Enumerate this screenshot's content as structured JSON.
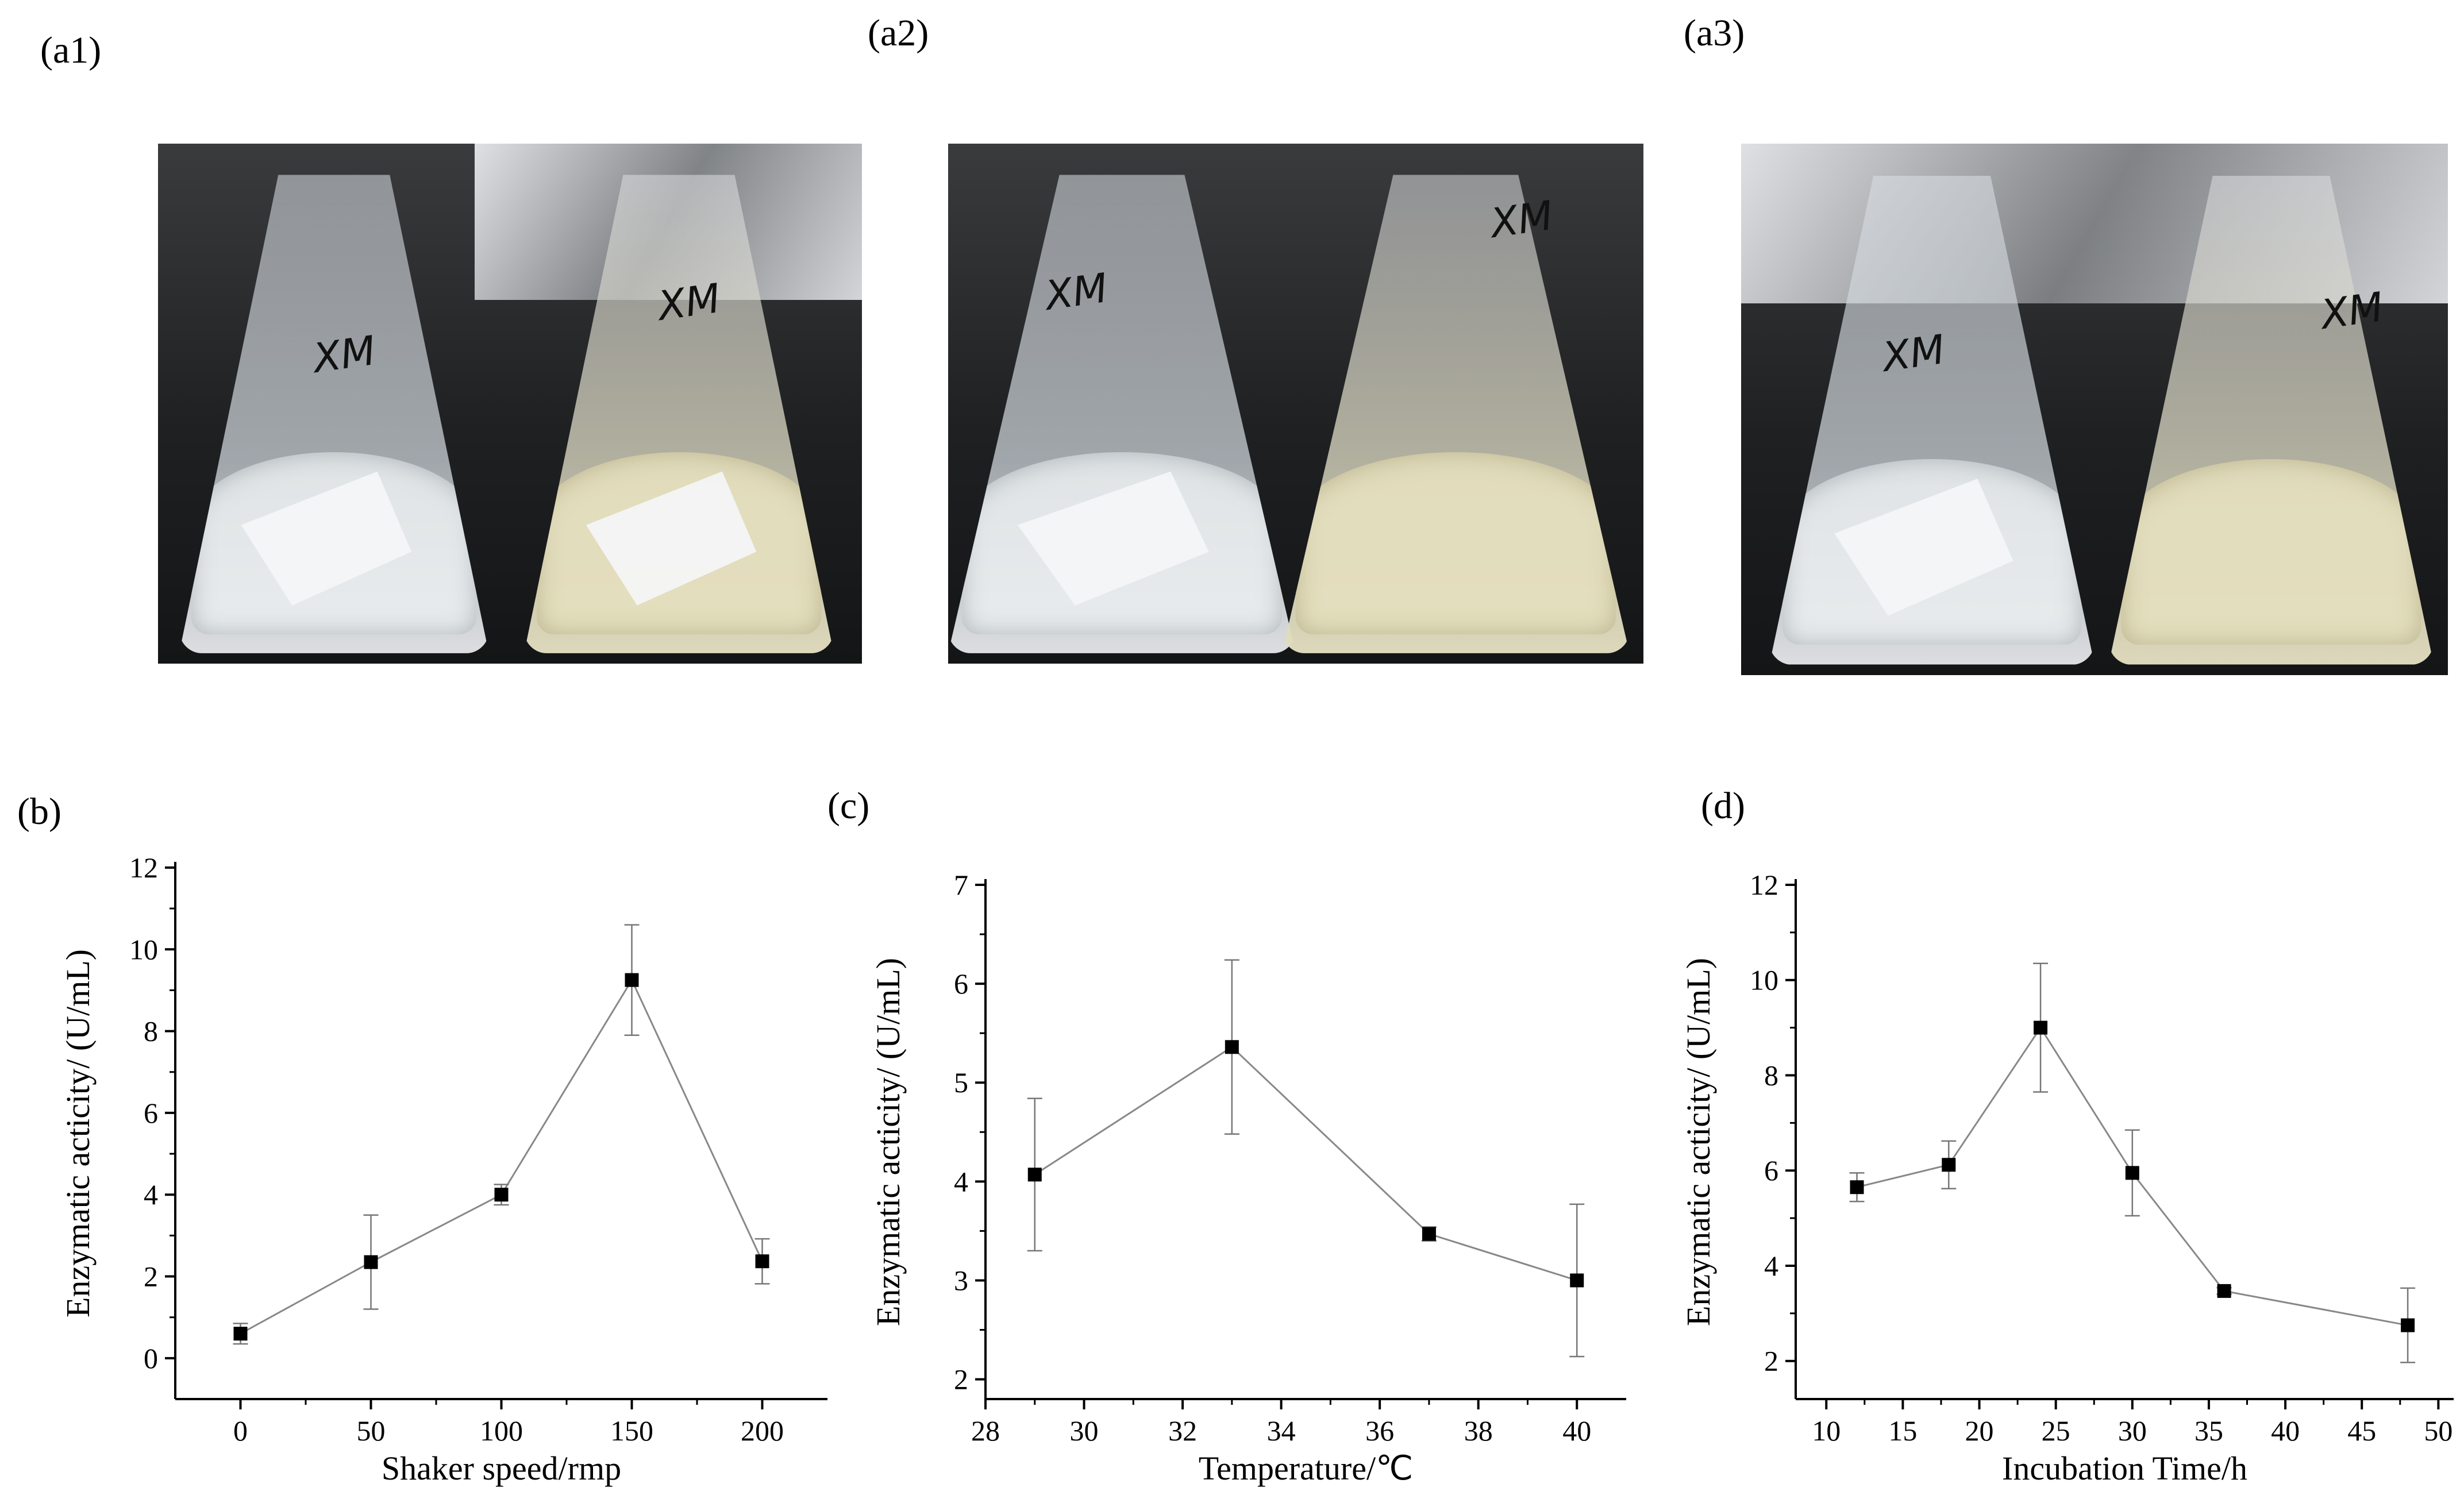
{
  "panels": {
    "a1": "(a1)",
    "a2": "(a2)",
    "a3": "(a3)",
    "b": "(b)",
    "c": "(c)",
    "d": "(d)"
  },
  "photos": {
    "flask_mark": "XM",
    "glass_color": "#dfe3e7",
    "turbid_color": "#e2dcbc",
    "background_color": "#1f2022"
  },
  "chart_data": [
    {
      "type": "scatter",
      "panel": "(b)",
      "title": "",
      "xlabel": "Shaker speed/rmp",
      "ylabel": "Enzymatic acticity/ (U/mL)",
      "x": [
        0,
        50,
        100,
        150,
        200
      ],
      "values": [
        0.6,
        2.35,
        4.0,
        9.25,
        2.37
      ],
      "errors": [
        0.25,
        1.15,
        0.25,
        1.35,
        0.55
      ],
      "xlim": [
        -25,
        225
      ],
      "ylim": [
        -1,
        12
      ],
      "xticks": [
        0,
        50,
        100,
        150,
        200
      ],
      "yticks": [
        0,
        2,
        4,
        6,
        8,
        10,
        12
      ],
      "line": true,
      "grid": false,
      "marker_color": "#000000",
      "line_color": "#888888"
    },
    {
      "type": "scatter",
      "panel": "(c)",
      "title": "",
      "xlabel": "Temperature/℃",
      "ylabel": "Enzymatic acticity/ (U/mL)",
      "x": [
        29,
        33,
        37,
        40
      ],
      "values": [
        4.07,
        5.36,
        3.47,
        3.0
      ],
      "errors": [
        0.77,
        0.88,
        0.07,
        0.77
      ],
      "xlim": [
        28,
        41
      ],
      "ylim": [
        1.8,
        7
      ],
      "xticks": [
        28,
        30,
        32,
        34,
        36,
        38,
        40
      ],
      "yticks": [
        2,
        3,
        4,
        5,
        6,
        7
      ],
      "line": true,
      "grid": false,
      "marker_color": "#000000",
      "line_color": "#888888"
    },
    {
      "type": "scatter",
      "panel": "(d)",
      "title": "",
      "xlabel": "Incubation Time/h",
      "ylabel": "Enzymatic acticity/ (U/mL)",
      "x": [
        12,
        18,
        24,
        30,
        36,
        48
      ],
      "values": [
        5.65,
        6.12,
        9.0,
        5.95,
        3.47,
        2.75
      ],
      "errors": [
        0.3,
        0.5,
        1.35,
        0.9,
        0.07,
        0.78
      ],
      "xlim": [
        8,
        51
      ],
      "ylim": [
        1.2,
        12
      ],
      "xticks": [
        10,
        15,
        20,
        25,
        30,
        35,
        40,
        45,
        50
      ],
      "yticks": [
        2,
        4,
        6,
        8,
        10,
        12
      ],
      "line": true,
      "grid": false,
      "marker_color": "#000000",
      "line_color": "#888888"
    }
  ]
}
